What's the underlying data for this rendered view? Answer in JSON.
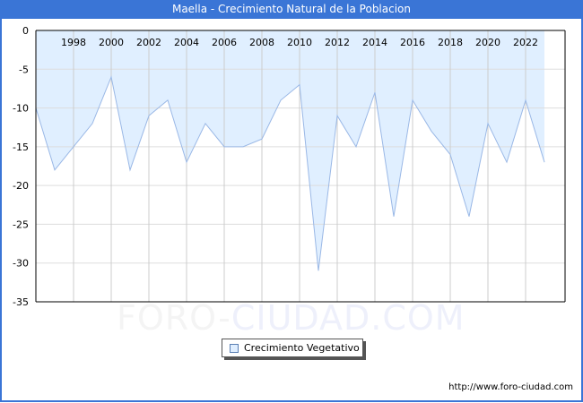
{
  "header": {
    "title": "Maella - Crecimiento Natural de la Poblacion"
  },
  "legend": {
    "label": "Crecimiento Vegetativo",
    "icon": "square-swatch-icon"
  },
  "source": {
    "url_text": "http://www.foro-ciudad.com"
  },
  "watermark": {
    "part1": "FORO-",
    "part2": "CIUDAD.COM"
  },
  "colors": {
    "title_bar": "#3a75d6",
    "fill": "#e0efff",
    "line": "#9ab8e6",
    "grid": "#dddddd",
    "axis": "#000000"
  },
  "chart_data": {
    "type": "area",
    "title": "Maella - Crecimiento Natural de la Poblacion",
    "xlabel": "",
    "ylabel": "",
    "x": [
      1996,
      1997,
      1998,
      1999,
      2000,
      2001,
      2002,
      2003,
      2004,
      2005,
      2006,
      2007,
      2008,
      2009,
      2010,
      2011,
      2012,
      2013,
      2014,
      2015,
      2016,
      2017,
      2018,
      2019,
      2020,
      2021,
      2022,
      2023
    ],
    "series": [
      {
        "name": "Crecimiento Vegetativo",
        "values": [
          -10,
          -18,
          -15,
          -12,
          -6,
          -18,
          -11,
          -9,
          -17,
          -12,
          -15,
          -15,
          -14,
          -9,
          -7,
          -31,
          -11,
          -15,
          -8,
          -24,
          -9,
          -13,
          -16,
          -24,
          -12,
          -17,
          -9,
          -17
        ]
      }
    ],
    "x_tick_labels": [
      "1998",
      "2000",
      "2002",
      "2004",
      "2006",
      "2008",
      "2010",
      "2012",
      "2014",
      "2016",
      "2018",
      "2020",
      "2022"
    ],
    "y_tick_labels": [
      "0",
      "-5",
      "-10",
      "-15",
      "-20",
      "-25",
      "-30",
      "-35"
    ],
    "ylim": [
      -35,
      0
    ],
    "xlim": [
      1996,
      2024.5
    ],
    "grid": true,
    "legend_position": "bottom-center"
  }
}
